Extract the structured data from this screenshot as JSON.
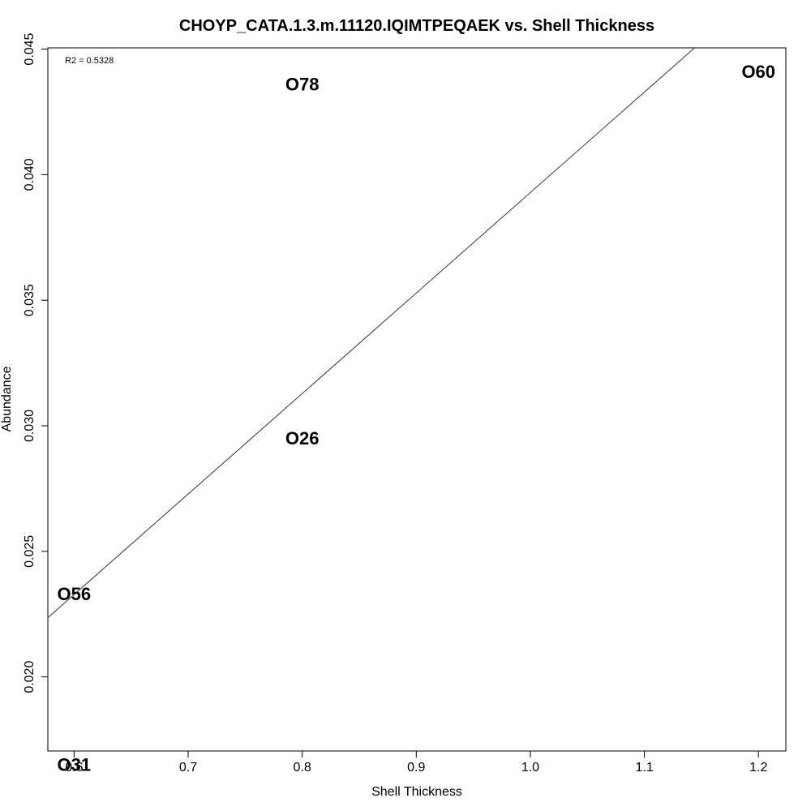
{
  "chart_data": {
    "type": "scatter",
    "title": "CHOYP_CATA.1.3.m.11120.IQIMTPEQAEK vs. Shell Thickness",
    "xlabel": "Shell Thickness",
    "ylabel": "Abundance",
    "xlim": [
      0.577,
      1.224
    ],
    "ylim": [
      0.01705,
      0.04505
    ],
    "x_ticks": [
      0.6,
      0.7,
      0.8,
      0.9,
      1.0,
      1.1,
      1.2
    ],
    "x_tick_labels": [
      "0.6",
      "0.7",
      "0.8",
      "0.9",
      "1.0",
      "1.1",
      "1.2"
    ],
    "y_ticks": [
      0.02,
      0.025,
      0.03,
      0.035,
      0.04,
      0.045
    ],
    "y_tick_labels": [
      "0.020",
      "0.025",
      "0.030",
      "0.035",
      "0.040",
      "0.045"
    ],
    "grid": false,
    "points": [
      {
        "label": "O78",
        "x": 0.8,
        "y": 0.0436
      },
      {
        "label": "O60",
        "x": 1.2,
        "y": 0.0441
      },
      {
        "label": "O26",
        "x": 0.8,
        "y": 0.0295
      },
      {
        "label": "O56",
        "x": 0.6,
        "y": 0.0233
      },
      {
        "label": "O31",
        "x": 0.6,
        "y": 0.0165
      }
    ],
    "regression_line": {
      "x": [
        0.577,
        1.144
      ],
      "y": [
        0.02236,
        0.04505
      ]
    },
    "annotation": "R2 = 0.5328"
  }
}
